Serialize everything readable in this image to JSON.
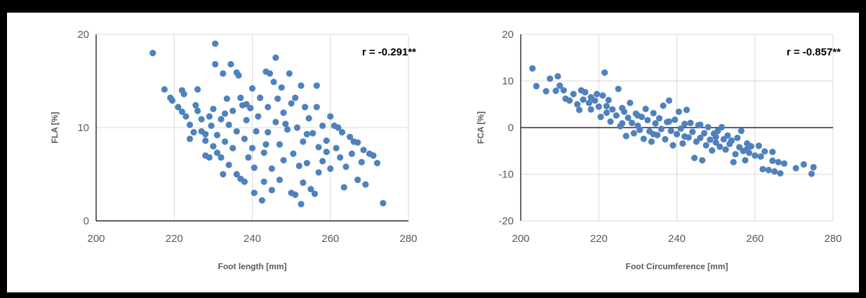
{
  "chart_data": [
    {
      "type": "scatter",
      "xlabel": "Foot length [mm]",
      "ylabel": "FLA [%]",
      "xlim": [
        200,
        280
      ],
      "ylim": [
        0,
        20
      ],
      "xticks": [
        "200",
        "220",
        "240",
        "260",
        "280"
      ],
      "yticks": [
        "0",
        "10",
        "20"
      ],
      "grid": true,
      "annotation": "r  =  -0.291**",
      "color": "#4f81bd",
      "points": [
        [
          214.5,
          18.0
        ],
        [
          217.5,
          14.1
        ],
        [
          219,
          13.2
        ],
        [
          219.5,
          12.9
        ],
        [
          221,
          12.2
        ],
        [
          222,
          14.0
        ],
        [
          222.5,
          13.6
        ],
        [
          222,
          11.7
        ],
        [
          223,
          11.2
        ],
        [
          224,
          10.3
        ],
        [
          224,
          8.8
        ],
        [
          225,
          9.5
        ],
        [
          225.5,
          12.4
        ],
        [
          226,
          14.1
        ],
        [
          226,
          11.8
        ],
        [
          227,
          10.9
        ],
        [
          227,
          9.6
        ],
        [
          228,
          8.6
        ],
        [
          228,
          7.0
        ],
        [
          229,
          11.2
        ],
        [
          229,
          6.8
        ],
        [
          229.5,
          10.2
        ],
        [
          230,
          8.0
        ],
        [
          230,
          12.0
        ],
        [
          230.5,
          16.8
        ],
        [
          230.5,
          19.0
        ],
        [
          231,
          9.2
        ],
        [
          231,
          7.3
        ],
        [
          232,
          6.8
        ],
        [
          232,
          10.9
        ],
        [
          232.5,
          5.0
        ],
        [
          232.5,
          15.8
        ],
        [
          233,
          8.5
        ],
        [
          233.5,
          13.1
        ],
        [
          234,
          10.3
        ],
        [
          234,
          6.0
        ],
        [
          234.5,
          16.8
        ],
        [
          235,
          11.8
        ],
        [
          235,
          7.8
        ],
        [
          236,
          9.6
        ],
        [
          236,
          5.0
        ],
        [
          236,
          15.9
        ],
        [
          236.5,
          15.6
        ],
        [
          237,
          13.2
        ],
        [
          237,
          4.5
        ],
        [
          237.5,
          12.4
        ],
        [
          238,
          8.8
        ],
        [
          238,
          4.2
        ],
        [
          238.5,
          10.8
        ],
        [
          239,
          6.8
        ],
        [
          239.5,
          12.1
        ],
        [
          240,
          14.2
        ],
        [
          240,
          7.8
        ],
        [
          240.5,
          5.7
        ],
        [
          240.5,
          3.0
        ],
        [
          241,
          9.6
        ],
        [
          241.5,
          11.2
        ],
        [
          242,
          13.2
        ],
        [
          242.5,
          2.2
        ],
        [
          243,
          7.3
        ],
        [
          243,
          4.2
        ],
        [
          243.5,
          16.0
        ],
        [
          244,
          12.2
        ],
        [
          244,
          9.5
        ],
        [
          244.5,
          15.8
        ],
        [
          245,
          5.6
        ],
        [
          245,
          3.3
        ],
        [
          245.5,
          14.9
        ],
        [
          246,
          17.5
        ],
        [
          246,
          10.6
        ],
        [
          246.5,
          13.1
        ],
        [
          247,
          8.2
        ],
        [
          247,
          4.4
        ],
        [
          247.5,
          14.3
        ],
        [
          248,
          11.6
        ],
        [
          248,
          6.5
        ],
        [
          249,
          9.8
        ],
        [
          249.5,
          15.8
        ],
        [
          250,
          12.6
        ],
        [
          250,
          3.0
        ],
        [
          250.5,
          7.2
        ],
        [
          251,
          13.2
        ],
        [
          251,
          2.8
        ],
        [
          251.5,
          10.0
        ],
        [
          252,
          5.9
        ],
        [
          252.5,
          14.5
        ],
        [
          253,
          8.5
        ],
        [
          253,
          4.1
        ],
        [
          253.5,
          12.2
        ],
        [
          254,
          6.2
        ],
        [
          254.5,
          11.0
        ],
        [
          255,
          3.4
        ],
        [
          255.5,
          9.4
        ],
        [
          256,
          2.9
        ],
        [
          256.5,
          14.5
        ],
        [
          256.5,
          12.2
        ],
        [
          257,
          7.9
        ],
        [
          257,
          5.2
        ],
        [
          258,
          10.2
        ],
        [
          258,
          6.4
        ],
        [
          259,
          8.6
        ],
        [
          260,
          11.2
        ],
        [
          260,
          5.6
        ],
        [
          261,
          10.2
        ],
        [
          261.5,
          7.8
        ],
        [
          262,
          10.0
        ],
        [
          262.5,
          6.8
        ],
        [
          263,
          9.5
        ],
        [
          263.5,
          3.6
        ],
        [
          264,
          5.8
        ],
        [
          265,
          9.0
        ],
        [
          265.5,
          7.2
        ],
        [
          266,
          8.5
        ],
        [
          267,
          8.4
        ],
        [
          267,
          4.4
        ],
        [
          268,
          6.3
        ],
        [
          268.5,
          7.6
        ],
        [
          269,
          3.9
        ],
        [
          270,
          7.2
        ],
        [
          271,
          7.0
        ],
        [
          272,
          6.2
        ],
        [
          273.5,
          1.9
        ],
        [
          252.5,
          1.8
        ],
        [
          228,
          9.3
        ],
        [
          233,
          11.5
        ],
        [
          238.5,
          12.5
        ],
        [
          243.5,
          8.2
        ],
        [
          248.5,
          10.4
        ],
        [
          254,
          9.3
        ],
        [
          259,
          7.4
        ]
      ]
    },
    {
      "type": "scatter",
      "xlabel": "Foot Circumference [mm]",
      "ylabel": "FCA [%]",
      "xlim": [
        200,
        280
      ],
      "ylim": [
        -20,
        20
      ],
      "xticks": [
        "200",
        "220",
        "240",
        "260",
        "280"
      ],
      "yticks": [
        "-20",
        "-10",
        "0",
        "10",
        "20"
      ],
      "grid": true,
      "zero_line": true,
      "annotation": "r  =  -0.857**",
      "color": "#4f81bd",
      "points": [
        [
          203,
          12.7
        ],
        [
          204,
          8.9
        ],
        [
          206.5,
          7.8
        ],
        [
          207.5,
          10.5
        ],
        [
          209,
          7.9
        ],
        [
          209.5,
          11.0
        ],
        [
          210,
          9.0
        ],
        [
          211,
          8.0
        ],
        [
          211.5,
          6.2
        ],
        [
          212.5,
          5.8
        ],
        [
          213.5,
          7.2
        ],
        [
          214.5,
          5.0
        ],
        [
          215,
          3.8
        ],
        [
          215.5,
          8.0
        ],
        [
          216,
          6.0
        ],
        [
          216.5,
          7.6
        ],
        [
          217.5,
          5.3
        ],
        [
          218,
          3.9
        ],
        [
          219,
          5.8
        ],
        [
          219.5,
          7.2
        ],
        [
          220,
          4.5
        ],
        [
          220.5,
          2.3
        ],
        [
          221,
          6.9
        ],
        [
          221.5,
          11.8
        ],
        [
          222,
          3.2
        ],
        [
          222.5,
          5.9
        ],
        [
          223,
          1.3
        ],
        [
          223.5,
          3.9
        ],
        [
          224.5,
          2.6
        ],
        [
          225,
          8.3
        ],
        [
          225.5,
          0.3
        ],
        [
          226,
          4.2
        ],
        [
          226.5,
          3.4
        ],
        [
          227,
          -1.8
        ],
        [
          227.5,
          2.1
        ],
        [
          228,
          5.3
        ],
        [
          228.5,
          1.0
        ],
        [
          229,
          -1.2
        ],
        [
          229.5,
          3.0
        ],
        [
          230,
          0.4
        ],
        [
          230.5,
          -0.5
        ],
        [
          231,
          2.3
        ],
        [
          231.5,
          -2.4
        ],
        [
          232,
          4.0
        ],
        [
          232.5,
          1.6
        ],
        [
          233,
          -0.8
        ],
        [
          233.5,
          -3.0
        ],
        [
          234,
          3.1
        ],
        [
          234.5,
          0.9
        ],
        [
          235,
          -1.6
        ],
        [
          235.5,
          2.0
        ],
        [
          236,
          -0.3
        ],
        [
          236.5,
          4.7
        ],
        [
          237,
          -2.5
        ],
        [
          237.5,
          1.2
        ],
        [
          238,
          5.8
        ],
        [
          238.5,
          -0.7
        ],
        [
          239,
          -3.8
        ],
        [
          239.5,
          1.7
        ],
        [
          240,
          -1.4
        ],
        [
          240.5,
          3.4
        ],
        [
          241,
          -0.2
        ],
        [
          241.5,
          -3.4
        ],
        [
          242,
          0.8
        ],
        [
          242.5,
          3.8
        ],
        [
          243,
          -2.1
        ],
        [
          243.5,
          1.0
        ],
        [
          244,
          -0.9
        ],
        [
          244.5,
          -6.5
        ],
        [
          245,
          -3.0
        ],
        [
          245.5,
          0.5
        ],
        [
          246,
          -2.2
        ],
        [
          246.5,
          -7.0
        ],
        [
          247,
          -1.2
        ],
        [
          247.5,
          -3.8
        ],
        [
          248,
          0.1
        ],
        [
          248.5,
          -2.6
        ],
        [
          249,
          -4.9
        ],
        [
          249.5,
          -1.3
        ],
        [
          250,
          -3.2
        ],
        [
          250.5,
          -0.7
        ],
        [
          251,
          -4.1
        ],
        [
          251.5,
          0.1
        ],
        [
          252,
          -2.5
        ],
        [
          252.5,
          -4.7
        ],
        [
          253,
          -1.7
        ],
        [
          253.5,
          -3.5
        ],
        [
          254.5,
          -7.4
        ],
        [
          255,
          -5.7
        ],
        [
          255.5,
          -2.2
        ],
        [
          256,
          -4.2
        ],
        [
          256.5,
          -0.7
        ],
        [
          257,
          -5.0
        ],
        [
          257.5,
          -7.0
        ],
        [
          258,
          -3.4
        ],
        [
          258.5,
          -5.4
        ],
        [
          259,
          -4.0
        ],
        [
          260,
          -6.0
        ],
        [
          261,
          -3.9
        ],
        [
          261.5,
          -6.2
        ],
        [
          262,
          -8.9
        ],
        [
          262.5,
          -5.1
        ],
        [
          263.5,
          -9.1
        ],
        [
          264.5,
          -5.2
        ],
        [
          264.5,
          -7.1
        ],
        [
          265,
          -9.4
        ],
        [
          266,
          -7.4
        ],
        [
          266.5,
          -9.8
        ],
        [
          267.5,
          -7.7
        ],
        [
          270.5,
          -8.7
        ],
        [
          272.5,
          -7.9
        ],
        [
          274.5,
          -9.9
        ],
        [
          275,
          -8.5
        ],
        [
          226,
          0.9
        ],
        [
          230,
          2.6
        ],
        [
          234,
          -1.4
        ],
        [
          238,
          1.3
        ],
        [
          242,
          -1.9
        ],
        [
          246,
          0.6
        ],
        [
          250,
          -2.0
        ],
        [
          254,
          -2.8
        ],
        [
          258,
          -4.6
        ],
        [
          218,
          6.5
        ],
        [
          222,
          4.6
        ]
      ]
    }
  ]
}
